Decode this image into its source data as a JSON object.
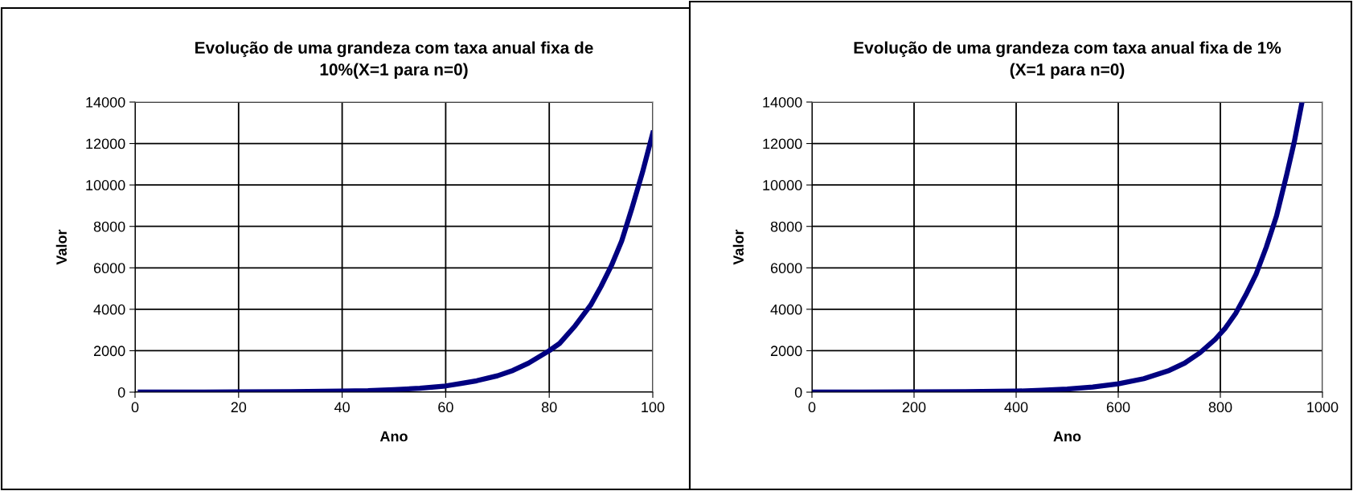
{
  "chart_data": [
    {
      "type": "line",
      "title": "Evolução de uma grandeza com taxa anual fixa de\n10%(X=1 para n=0)",
      "xlabel": "Ano",
      "ylabel": "Valor",
      "xlim": [
        0,
        100
      ],
      "xticks": [
        0,
        20,
        40,
        60,
        80,
        100
      ],
      "ylim": [
        0,
        14000
      ],
      "yticks": [
        0,
        2000,
        4000,
        6000,
        8000,
        10000,
        12000,
        14000
      ],
      "grid": true,
      "series": [
        {
          "color": "#000080",
          "x": [
            1,
            10,
            20,
            30,
            40,
            45,
            50,
            55,
            60,
            63,
            66,
            70,
            73,
            76,
            80,
            82,
            85,
            88,
            90,
            92,
            94,
            96,
            98,
            100
          ],
          "values": [
            0,
            0,
            10,
            20,
            50,
            70,
            120,
            190,
            300,
            420,
            550,
            790,
            1050,
            1400,
            2000,
            2350,
            3200,
            4200,
            5100,
            6100,
            7300,
            8900,
            10600,
            12500
          ]
        }
      ]
    },
    {
      "type": "line",
      "title": "Evolução de uma grandeza com taxa anual fixa de 1%\n(X=1 para n=0)",
      "xlabel": "Ano",
      "ylabel": "Valor",
      "xlim": [
        0,
        1000
      ],
      "xticks": [
        0,
        200,
        400,
        600,
        800,
        1000
      ],
      "ylim": [
        0,
        14000
      ],
      "yticks": [
        0,
        2000,
        4000,
        6000,
        8000,
        10000,
        12000,
        14000
      ],
      "grid": true,
      "series": [
        {
          "color": "#000080",
          "x": [
            0,
            100,
            200,
            300,
            400,
            450,
            500,
            550,
            600,
            650,
            700,
            730,
            760,
            790,
            810,
            830,
            850,
            870,
            890,
            910,
            930,
            945,
            960
          ],
          "values": [
            0,
            0,
            10,
            20,
            50,
            90,
            150,
            250,
            400,
            650,
            1050,
            1400,
            1900,
            2550,
            3100,
            3800,
            4700,
            5700,
            7000,
            8500,
            10500,
            12100,
            14000
          ]
        }
      ]
    }
  ]
}
